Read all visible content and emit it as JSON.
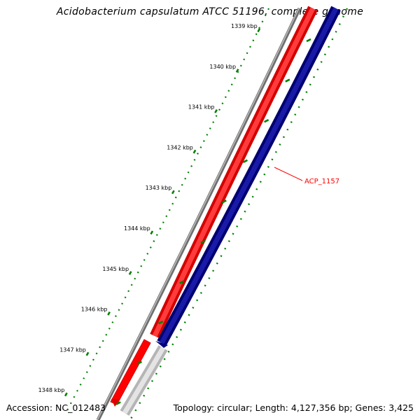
{
  "title": "Acidobacterium capsulatum ATCC 51196, complete genome",
  "accession": "Accession: NC_012483",
  "summary": "Topology: circular; Length: 4,127,356 bp; Genes: 3,425",
  "ticks": [
    {
      "label": "1339 kbp"
    },
    {
      "label": "1340 kbp"
    },
    {
      "label": "1341 kbp"
    },
    {
      "label": "1342 kbp"
    },
    {
      "label": "1343 kbp"
    },
    {
      "label": "1344 kbp"
    },
    {
      "label": "1345 kbp"
    },
    {
      "label": "1346 kbp"
    },
    {
      "label": "1347 kbp"
    },
    {
      "label": "1348 kbp"
    }
  ],
  "gene": {
    "label": "ACP_1157"
  },
  "colors": {
    "backbone": "#808080",
    "forward_gene": "#ff0000",
    "reverse_gene": "#000080",
    "other_feature": "#c0c0c0",
    "ruler": "#008000",
    "gene_label": "#ff0000"
  }
}
